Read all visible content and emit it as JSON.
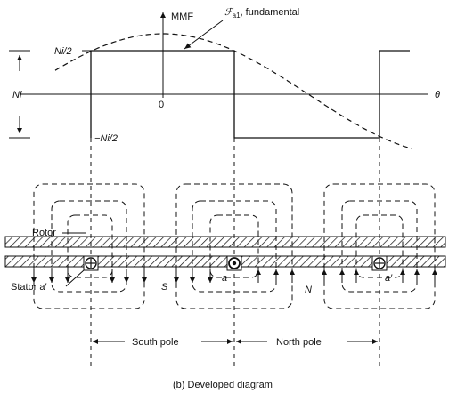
{
  "mmf_plot": {
    "y_axis_label": "MMF",
    "fundamental_label_symbol": "ℱ",
    "fundamental_label_subscript": "a1",
    "fundamental_label_rest": ", fundamental",
    "x_axis_label": "θ",
    "origin_label": "0",
    "upper_level_label": "Ni/2",
    "lower_level_label": "−Ni/2",
    "amplitude_label": "Ni"
  },
  "machine": {
    "rotor_label": "Rotor",
    "stator_label": "Stator a′",
    "south_pole_letter": "S",
    "north_pole_letter": "N",
    "coil_side_a": "a",
    "coil_side_a_prime": "a′"
  },
  "dimensions": {
    "south_pole_label": "South pole",
    "north_pole_label": "North pole"
  },
  "caption": "(b) Developed diagram",
  "colors": {
    "ink": "#111111",
    "background": "#ffffff"
  }
}
